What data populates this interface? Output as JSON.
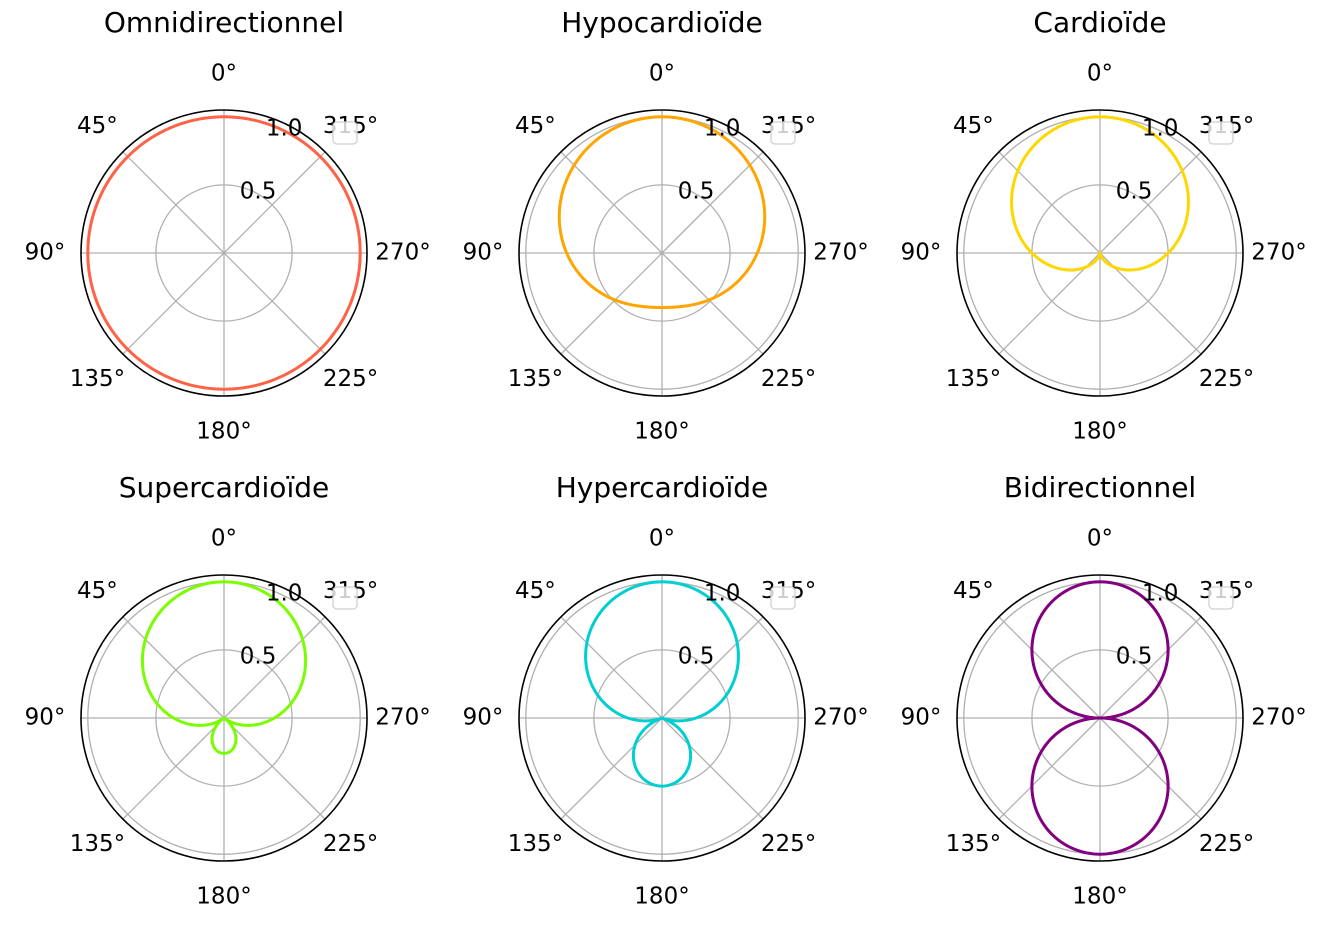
{
  "chart_data": [
    {
      "type": "polar-line",
      "title": "Omnidirectionnel",
      "pattern_coefficient": 1.0,
      "formula": "r = |a + (1 - a)·cos(θ)|",
      "theta_direction": "counterclockwise",
      "theta_zero": "top",
      "theta_ticks": [
        "0°",
        "45°",
        "90°",
        "135°",
        "180°",
        "225°",
        "270°",
        "315°"
      ],
      "r_ticks": [
        "0.5",
        "1.0"
      ],
      "rlim": [
        0,
        1.05
      ],
      "color": "#ff6347",
      "legend": "empty",
      "legend_placement": "upper-right",
      "grid": true
    },
    {
      "type": "polar-line",
      "title": "Hypocardioïde",
      "pattern_coefficient": 0.7,
      "formula": "r = |a + (1 - a)·cos(θ)|",
      "theta_direction": "counterclockwise",
      "theta_zero": "top",
      "theta_ticks": [
        "0°",
        "45°",
        "90°",
        "135°",
        "180°",
        "225°",
        "270°",
        "315°"
      ],
      "r_ticks": [
        "0.5",
        "1.0"
      ],
      "rlim": [
        0,
        1.05
      ],
      "color": "#ffa500",
      "legend": "empty",
      "legend_placement": "upper-right",
      "grid": true
    },
    {
      "type": "polar-line",
      "title": "Cardioïde",
      "pattern_coefficient": 0.5,
      "formula": "r = |a + (1 - a)·cos(θ)|",
      "theta_direction": "counterclockwise",
      "theta_zero": "top",
      "theta_ticks": [
        "0°",
        "45°",
        "90°",
        "135°",
        "180°",
        "225°",
        "270°",
        "315°"
      ],
      "r_ticks": [
        "0.5",
        "1.0"
      ],
      "rlim": [
        0,
        1.05
      ],
      "color": "#ffd700",
      "legend": "empty",
      "legend_placement": "upper-right",
      "grid": true
    },
    {
      "type": "polar-line",
      "title": "Supercardioïde",
      "pattern_coefficient": 0.37,
      "formula": "r = |a + (1 - a)·cos(θ)|",
      "theta_direction": "counterclockwise",
      "theta_zero": "top",
      "theta_ticks": [
        "0°",
        "45°",
        "90°",
        "135°",
        "180°",
        "225°",
        "270°",
        "315°"
      ],
      "r_ticks": [
        "0.5",
        "1.0"
      ],
      "rlim": [
        0,
        1.05
      ],
      "color": "#7cfc00",
      "legend": "empty",
      "legend_placement": "upper-right",
      "grid": true
    },
    {
      "type": "polar-line",
      "title": "Hypercardioïde",
      "pattern_coefficient": 0.25,
      "formula": "r = |a + (1 - a)·cos(θ)|",
      "theta_direction": "counterclockwise",
      "theta_zero": "top",
      "theta_ticks": [
        "0°",
        "45°",
        "90°",
        "135°",
        "180°",
        "225°",
        "270°",
        "315°"
      ],
      "r_ticks": [
        "0.5",
        "1.0"
      ],
      "rlim": [
        0,
        1.05
      ],
      "color": "#00ced1",
      "legend": "empty",
      "legend_placement": "upper-right",
      "grid": true
    },
    {
      "type": "polar-line",
      "title": "Bidirectionnel",
      "pattern_coefficient": 0.0,
      "formula": "r = |a + (1 - a)·cos(θ)|",
      "theta_direction": "counterclockwise",
      "theta_zero": "top",
      "theta_ticks": [
        "0°",
        "45°",
        "90°",
        "135°",
        "180°",
        "225°",
        "270°",
        "315°"
      ],
      "r_ticks": [
        "0.5",
        "1.0"
      ],
      "rlim": [
        0,
        1.05
      ],
      "color": "#800080",
      "legend": "empty",
      "legend_placement": "upper-right",
      "grid": true
    }
  ]
}
